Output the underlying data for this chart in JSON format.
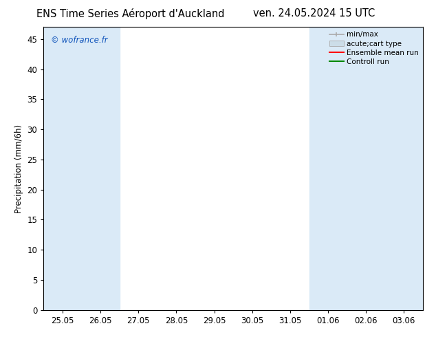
{
  "title_left": "ENS Time Series Aéroport d'Auckland",
  "title_right": "ven. 24.05.2024 15 UTC",
  "ylabel": "Precipitation (mm/6h)",
  "watermark": "© wofrance.fr",
  "watermark_color": "#1155bb",
  "ylim": [
    0,
    47
  ],
  "yticks": [
    0,
    5,
    10,
    15,
    20,
    25,
    30,
    35,
    40,
    45
  ],
  "xtick_labels": [
    "25.05",
    "26.05",
    "27.05",
    "28.05",
    "29.05",
    "30.05",
    "31.05",
    "01.06",
    "02.06",
    "03.06"
  ],
  "xtick_positions": [
    0,
    1,
    2,
    3,
    4,
    5,
    6,
    7,
    8,
    9
  ],
  "xlim": [
    -0.5,
    9.5
  ],
  "shaded_bands": [
    {
      "x_start": -0.5,
      "x_end": 0.5,
      "color": "#daeaf7"
    },
    {
      "x_start": 0.5,
      "x_end": 1.5,
      "color": "#daeaf7"
    },
    {
      "x_start": 6.5,
      "x_end": 7.5,
      "color": "#daeaf7"
    },
    {
      "x_start": 7.5,
      "x_end": 8.5,
      "color": "#daeaf7"
    },
    {
      "x_start": 8.5,
      "x_end": 9.5,
      "color": "#daeaf7"
    }
  ],
  "legend_items": [
    {
      "label": "min/max",
      "color": "#aaaaaa",
      "type": "errorbar"
    },
    {
      "label": "acute;cart type",
      "color": "#ccdde8",
      "type": "bar"
    },
    {
      "label": "Ensemble mean run",
      "color": "#ff0000",
      "type": "line"
    },
    {
      "label": "Controll run",
      "color": "#008800",
      "type": "line"
    }
  ],
  "background_color": "#ffffff",
  "plot_bg_color": "#ffffff",
  "tick_color": "#000000",
  "font_size": 8.5,
  "title_font_size": 10.5
}
